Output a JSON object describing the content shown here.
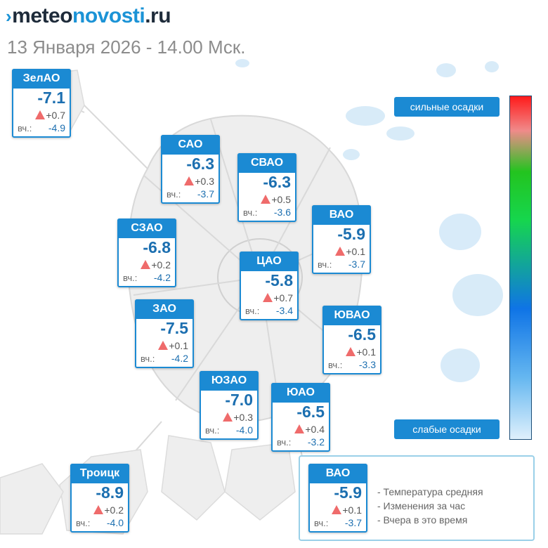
{
  "logo": {
    "part1": "meteo",
    "part2": "novosti",
    "part3": ".ru"
  },
  "subtitle": "13 Января 2026 - 14.00 Мск.",
  "precip": {
    "strong": "сильные осадки",
    "weak": "слабые осадки"
  },
  "scale_colors": [
    "#ff1a1a",
    "#23c41f",
    "#0f74e6",
    "#dff0fc"
  ],
  "districts": [
    {
      "name": "ЗелАО",
      "temp": "-7.1",
      "change": "+0.7",
      "yesterday_label": "вч.:",
      "yesterday": "-4.9"
    },
    {
      "name": "САО",
      "temp": "-6.3",
      "change": "+0.3",
      "yesterday_label": "вч.:",
      "yesterday": "-3.7"
    },
    {
      "name": "СВАО",
      "temp": "-6.3",
      "change": "+0.5",
      "yesterday_label": "вч.:",
      "yesterday": "-3.6"
    },
    {
      "name": "СЗАО",
      "temp": "-6.8",
      "change": "+0.2",
      "yesterday_label": "вч.:",
      "yesterday": "-4.2"
    },
    {
      "name": "ВАО",
      "temp": "-5.9",
      "change": "+0.1",
      "yesterday_label": "вч.:",
      "yesterday": "-3.7"
    },
    {
      "name": "ЦАО",
      "temp": "-5.8",
      "change": "+0.7",
      "yesterday_label": "вч.:",
      "yesterday": "-3.4"
    },
    {
      "name": "ЗАО",
      "temp": "-7.5",
      "change": "+0.1",
      "yesterday_label": "вч.:",
      "yesterday": "-4.2"
    },
    {
      "name": "ЮВАО",
      "temp": "-6.5",
      "change": "+0.1",
      "yesterday_label": "вч.:",
      "yesterday": "-3.3"
    },
    {
      "name": "ЮЗАО",
      "temp": "-7.0",
      "change": "+0.3",
      "yesterday_label": "вч.:",
      "yesterday": "-4.0"
    },
    {
      "name": "ЮАО",
      "temp": "-6.5",
      "change": "+0.4",
      "yesterday_label": "вч.:",
      "yesterday": "-3.2"
    },
    {
      "name": "Троицк",
      "temp": "-8.9",
      "change": "+0.2",
      "yesterday_label": "вч.:",
      "yesterday": "-4.0"
    }
  ],
  "legend": {
    "sample": {
      "name": "ВАО",
      "temp": "-5.9",
      "change": "+0.1",
      "yesterday_label": "вч.:",
      "yesterday": "-3.7"
    },
    "items": [
      "- Температура средняя",
      "- Изменения за час",
      "- Вчера в это время"
    ]
  }
}
